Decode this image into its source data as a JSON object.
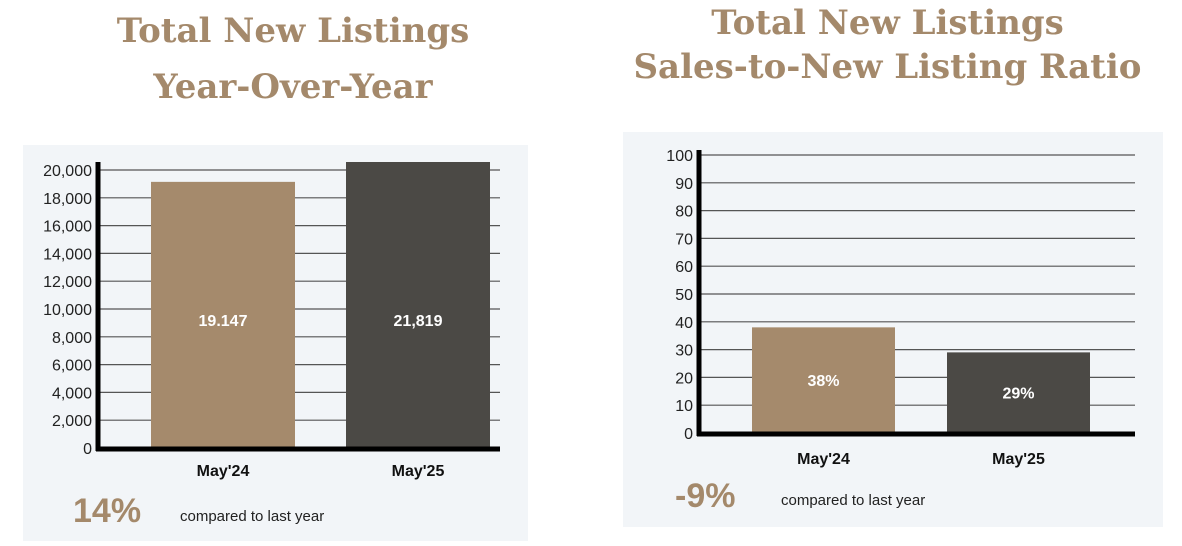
{
  "colors": {
    "tan": "#a58a6c",
    "dark": "#4b4945",
    "title": "#a4896b",
    "panel": "#f2f5f8"
  },
  "chart_data": [
    {
      "type": "bar",
      "title": [
        "Total New Listings",
        "Year-Over-Year"
      ],
      "categories": [
        "May'24",
        "May'25"
      ],
      "values": [
        19147,
        21819
      ],
      "data_labels": [
        "19.147",
        "21,819"
      ],
      "yticks": [
        "0",
        "2,000",
        "4,000",
        "6,000",
        "8,000",
        "10,000",
        "12,000",
        "14,000",
        "16,000",
        "18,000",
        "20,000"
      ],
      "ylim": [
        0,
        20000
      ],
      "grid": true,
      "change": "14%",
      "change_text": "compared to last year"
    },
    {
      "type": "bar",
      "title": [
        "Total New Listings",
        "Sales-to-New Listing Ratio"
      ],
      "categories": [
        "May'24",
        "May'25"
      ],
      "values": [
        38,
        29
      ],
      "data_labels": [
        "38%",
        "29%"
      ],
      "yticks": [
        "0",
        "10",
        "20",
        "30",
        "40",
        "50",
        "60",
        "70",
        "80",
        "90",
        "100"
      ],
      "ylim": [
        0,
        100
      ],
      "grid": true,
      "change": "-9%",
      "change_text": "compared to last year"
    }
  ]
}
